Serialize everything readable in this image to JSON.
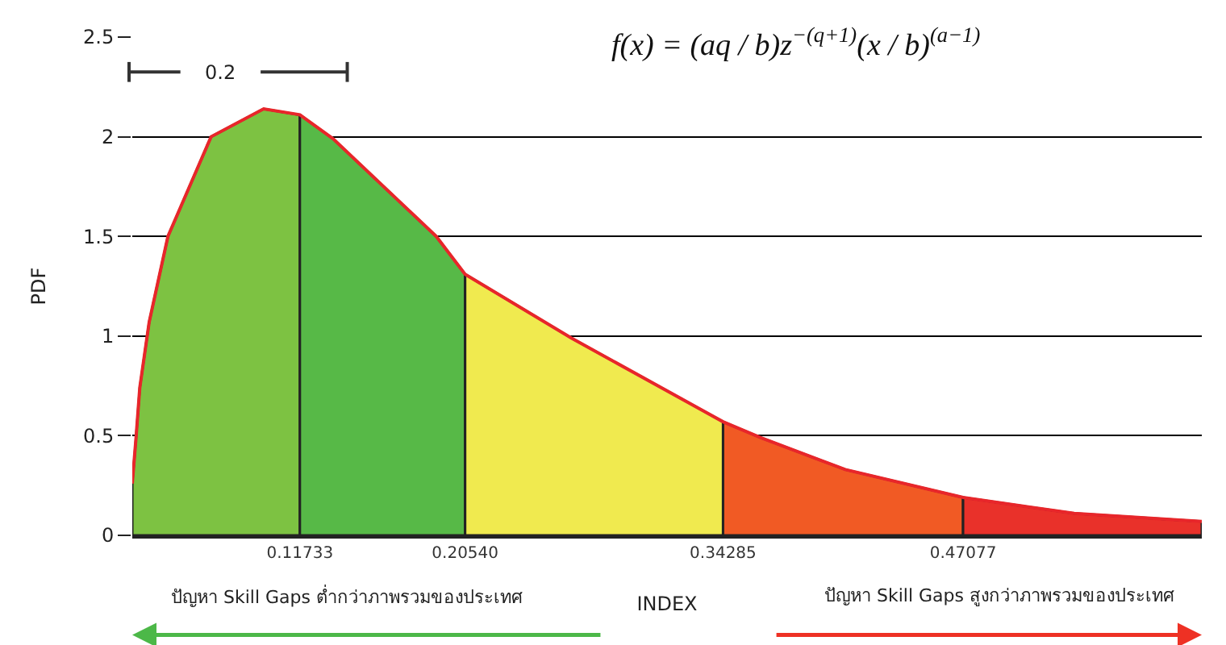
{
  "chart_data": {
    "type": "area",
    "xlabel": "INDEX",
    "ylabel": "PDF",
    "annotations": [
      "0.2",
      "f(x) = (aq / b)z$^{−(q+1)}$(x / b)$^{(a−1)}$",
      "ปัญหา Skill Gaps ต่ำกว่าภาพรวมของประเทศ",
      "ปัญหา Skill Gaps สูงกว่าภาพรวมของประเทศ"
    ],
    "series": [
      {
        "color": "#7dc242",
        "x": [
          0.028,
          0.03,
          0.032,
          0.037,
          0.047,
          0.07,
          0.098,
          0.11733
        ],
        "values": [
          0.26,
          0.49,
          0.74,
          1.07,
          1.5,
          2.0,
          2.14,
          2.11
        ]
      },
      {
        "color": "#57b947",
        "x": [
          0.11733,
          0.135,
          0.19,
          0.2054
        ],
        "values": [
          2.11,
          1.99,
          1.5,
          1.31
        ]
      },
      {
        "color": "#f0ea4f",
        "x": [
          0.2054,
          0.262,
          0.34285
        ],
        "values": [
          1.31,
          0.99,
          0.57
        ]
      },
      {
        "color": "#f15a24",
        "x": [
          0.34285,
          0.363,
          0.408,
          0.47077
        ],
        "values": [
          0.57,
          0.49,
          0.33,
          0.19
        ]
      },
      {
        "color": "#e9312a",
        "x": [
          0.47077,
          0.53,
          0.598
        ],
        "values": [
          0.19,
          0.11,
          0.07
        ]
      },
      {
        "type": "line",
        "color": "#e8262a",
        "x": [
          0.028,
          0.03,
          0.032,
          0.037,
          0.047,
          0.07,
          0.098,
          0.11733,
          0.135,
          0.19,
          0.2054,
          0.262,
          0.34285,
          0.363,
          0.408,
          0.47077,
          0.53,
          0.598
        ],
        "values": [
          0.26,
          0.49,
          0.74,
          1.07,
          1.5,
          2.0,
          2.14,
          2.11,
          1.99,
          1.5,
          1.31,
          0.99,
          0.57,
          0.49,
          0.33,
          0.19,
          0.11,
          0.07
        ]
      }
    ],
    "xlim": [
      0.028,
      0.598
    ],
    "xticks": [
      0.11733,
      {
        "value": 0.2054,
        "label": "0.20540"
      },
      0.34285,
      0.47077
    ],
    "ylim": [
      0,
      2.5
    ],
    "yticks": [
      0,
      0.5,
      1,
      1.5,
      2,
      2.5
    ],
    "grid": "y"
  }
}
